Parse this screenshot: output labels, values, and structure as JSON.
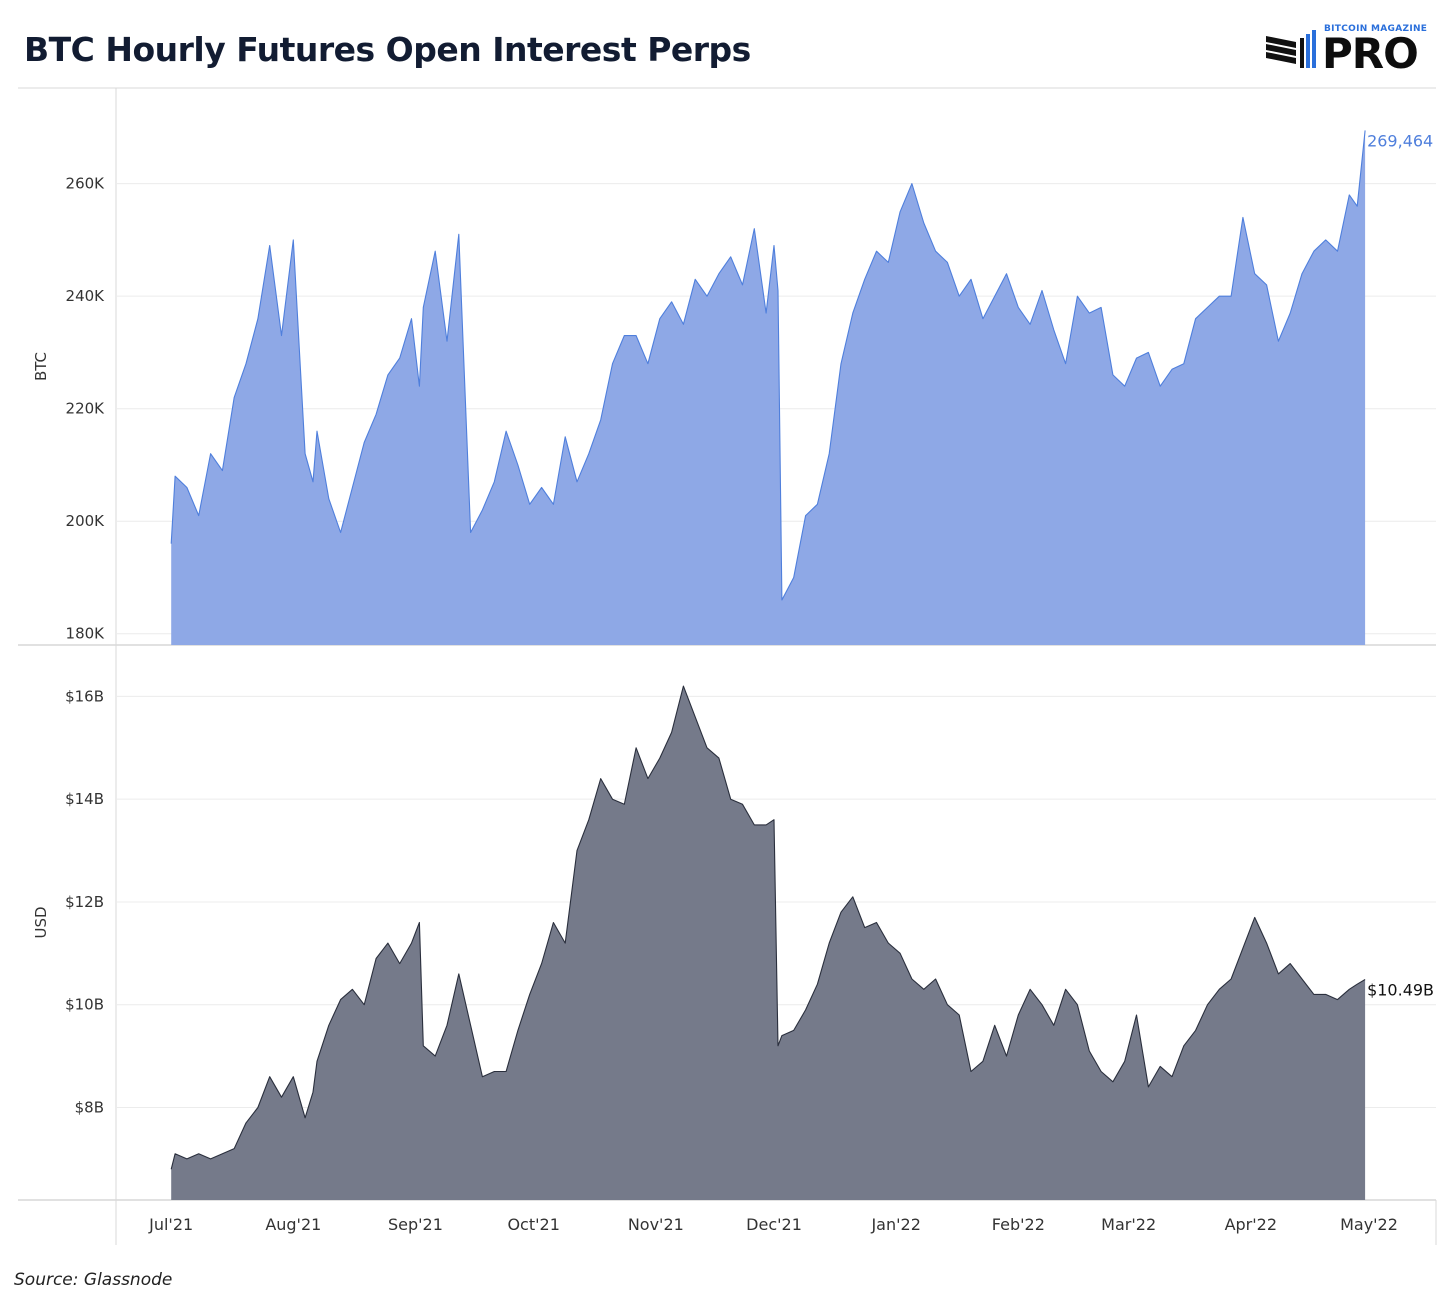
{
  "title": "BTC Hourly Futures Open Interest Perps",
  "logo": {
    "top_text": "BITCOIN MAGAZINE",
    "main_text": "PRO",
    "icon": "bar-stack-icon"
  },
  "source": "Source: Glassnode",
  "colors": {
    "btc_fill": "#8ea8e6",
    "btc_line": "#4f7fdc",
    "usd_fill": "#757a8a",
    "usd_line": "#2a2f3d",
    "last_btc": "#4f7fdc",
    "last_usd": "#111111"
  },
  "chart_data": [
    {
      "type": "area",
      "ylabel": "BTC",
      "ylim": [
        178000,
        277000
      ],
      "yticks": [
        180000,
        200000,
        220000,
        240000,
        260000
      ],
      "ytick_labels": [
        "180K",
        "200K",
        "220K",
        "240K",
        "260K"
      ],
      "x": [
        "2021-07-01",
        "2021-07-02",
        "2021-07-05",
        "2021-07-08",
        "2021-07-11",
        "2021-07-14",
        "2021-07-17",
        "2021-07-20",
        "2021-07-23",
        "2021-07-26",
        "2021-07-29",
        "2021-08-01",
        "2021-08-04",
        "2021-08-06",
        "2021-08-07",
        "2021-08-10",
        "2021-08-13",
        "2021-08-16",
        "2021-08-19",
        "2021-08-22",
        "2021-08-25",
        "2021-08-28",
        "2021-08-31",
        "2021-09-02",
        "2021-09-03",
        "2021-09-06",
        "2021-09-09",
        "2021-09-12",
        "2021-09-15",
        "2021-09-18",
        "2021-09-21",
        "2021-09-24",
        "2021-09-27",
        "2021-09-30",
        "2021-10-03",
        "2021-10-06",
        "2021-10-09",
        "2021-10-12",
        "2021-10-15",
        "2021-10-18",
        "2021-10-21",
        "2021-10-24",
        "2021-10-27",
        "2021-10-30",
        "2021-11-02",
        "2021-11-05",
        "2021-11-08",
        "2021-11-11",
        "2021-11-14",
        "2021-11-17",
        "2021-11-20",
        "2021-11-23",
        "2021-11-26",
        "2021-11-29",
        "2021-12-01",
        "2021-12-02",
        "2021-12-03",
        "2021-12-06",
        "2021-12-09",
        "2021-12-12",
        "2021-12-15",
        "2021-12-18",
        "2021-12-21",
        "2021-12-24",
        "2021-12-27",
        "2021-12-30",
        "2022-01-02",
        "2022-01-05",
        "2022-01-08",
        "2022-01-11",
        "2022-01-14",
        "2022-01-17",
        "2022-01-20",
        "2022-01-23",
        "2022-01-26",
        "2022-01-29",
        "2022-02-01",
        "2022-02-04",
        "2022-02-07",
        "2022-02-10",
        "2022-02-13",
        "2022-02-16",
        "2022-02-19",
        "2022-02-22",
        "2022-02-25",
        "2022-02-28",
        "2022-03-03",
        "2022-03-06",
        "2022-03-09",
        "2022-03-12",
        "2022-03-15",
        "2022-03-18",
        "2022-03-21",
        "2022-03-24",
        "2022-03-27",
        "2022-03-30",
        "2022-04-02",
        "2022-04-05",
        "2022-04-08",
        "2022-04-11",
        "2022-04-14",
        "2022-04-17",
        "2022-04-20",
        "2022-04-23",
        "2022-04-26",
        "2022-04-28",
        "2022-04-30"
      ],
      "values": [
        196000,
        208000,
        206000,
        201000,
        212000,
        209000,
        222000,
        228000,
        236000,
        249000,
        233000,
        250000,
        212000,
        207000,
        216000,
        204000,
        198000,
        206000,
        214000,
        219000,
        226000,
        229000,
        236000,
        224000,
        238000,
        248000,
        232000,
        251000,
        198000,
        202000,
        207000,
        216000,
        210000,
        203000,
        206000,
        203000,
        215000,
        207000,
        212000,
        218000,
        228000,
        233000,
        233000,
        228000,
        236000,
        239000,
        235000,
        243000,
        240000,
        244000,
        247000,
        242000,
        252000,
        237000,
        249000,
        241000,
        186000,
        190000,
        201000,
        203000,
        212000,
        228000,
        237000,
        243000,
        248000,
        246000,
        255000,
        260000,
        253000,
        248000,
        246000,
        240000,
        243000,
        236000,
        240000,
        244000,
        238000,
        235000,
        241000,
        234000,
        228000,
        240000,
        237000,
        238000,
        226000,
        224000,
        229000,
        230000,
        224000,
        227000,
        228000,
        236000,
        238000,
        240000,
        240000,
        254000,
        244000,
        242000,
        232000,
        237000,
        244000,
        248000,
        250000,
        248000,
        258000,
        256000,
        269464
      ],
      "last_label": "269,464"
    },
    {
      "type": "area",
      "ylabel": "USD",
      "ylim": [
        6.2,
        17.0
      ],
      "yticks": [
        8,
        10,
        12,
        14,
        16
      ],
      "ytick_labels": [
        "$8B",
        "$10B",
        "$12B",
        "$14B",
        "$16B"
      ],
      "x": [
        "2021-07-01",
        "2021-07-02",
        "2021-07-05",
        "2021-07-08",
        "2021-07-11",
        "2021-07-14",
        "2021-07-17",
        "2021-07-20",
        "2021-07-23",
        "2021-07-26",
        "2021-07-29",
        "2021-08-01",
        "2021-08-04",
        "2021-08-06",
        "2021-08-07",
        "2021-08-10",
        "2021-08-13",
        "2021-08-16",
        "2021-08-19",
        "2021-08-22",
        "2021-08-25",
        "2021-08-28",
        "2021-08-31",
        "2021-09-02",
        "2021-09-03",
        "2021-09-06",
        "2021-09-09",
        "2021-09-12",
        "2021-09-15",
        "2021-09-18",
        "2021-09-21",
        "2021-09-24",
        "2021-09-27",
        "2021-09-30",
        "2021-10-03",
        "2021-10-06",
        "2021-10-09",
        "2021-10-12",
        "2021-10-15",
        "2021-10-18",
        "2021-10-21",
        "2021-10-24",
        "2021-10-27",
        "2021-10-30",
        "2021-11-02",
        "2021-11-05",
        "2021-11-08",
        "2021-11-11",
        "2021-11-14",
        "2021-11-17",
        "2021-11-20",
        "2021-11-23",
        "2021-11-26",
        "2021-11-29",
        "2021-12-01",
        "2021-12-02",
        "2021-12-03",
        "2021-12-06",
        "2021-12-09",
        "2021-12-12",
        "2021-12-15",
        "2021-12-18",
        "2021-12-21",
        "2021-12-24",
        "2021-12-27",
        "2021-12-30",
        "2022-01-02",
        "2022-01-05",
        "2022-01-08",
        "2022-01-11",
        "2022-01-14",
        "2022-01-17",
        "2022-01-20",
        "2022-01-23",
        "2022-01-26",
        "2022-01-29",
        "2022-02-01",
        "2022-02-04",
        "2022-02-07",
        "2022-02-10",
        "2022-02-13",
        "2022-02-16",
        "2022-02-19",
        "2022-02-22",
        "2022-02-25",
        "2022-02-28",
        "2022-03-03",
        "2022-03-06",
        "2022-03-09",
        "2022-03-12",
        "2022-03-15",
        "2022-03-18",
        "2022-03-21",
        "2022-03-24",
        "2022-03-27",
        "2022-03-30",
        "2022-04-02",
        "2022-04-05",
        "2022-04-08",
        "2022-04-11",
        "2022-04-14",
        "2022-04-17",
        "2022-04-20",
        "2022-04-23",
        "2022-04-26",
        "2022-04-28",
        "2022-04-30"
      ],
      "values": [
        6.8,
        7.1,
        7.0,
        7.1,
        7.0,
        7.1,
        7.2,
        7.7,
        8.0,
        8.6,
        8.2,
        8.6,
        7.8,
        8.3,
        8.9,
        9.6,
        10.1,
        10.3,
        10.0,
        10.9,
        11.2,
        10.8,
        11.2,
        11.6,
        9.2,
        9.0,
        9.6,
        10.6,
        9.6,
        8.6,
        8.7,
        8.7,
        9.5,
        10.2,
        10.8,
        11.6,
        11.2,
        13.0,
        13.6,
        14.4,
        14.0,
        13.9,
        15.0,
        14.4,
        14.8,
        15.3,
        16.2,
        15.6,
        15.0,
        14.8,
        14.0,
        13.9,
        13.5,
        13.5,
        13.6,
        9.2,
        9.4,
        9.5,
        9.9,
        10.4,
        11.2,
        11.8,
        12.1,
        11.5,
        11.6,
        11.2,
        11.0,
        10.5,
        10.3,
        10.5,
        10.0,
        9.8,
        8.7,
        8.9,
        9.6,
        9.0,
        9.8,
        10.3,
        10.0,
        9.6,
        10.3,
        10.0,
        9.1,
        8.7,
        8.5,
        8.9,
        9.8,
        8.4,
        8.8,
        8.6,
        9.2,
        9.5,
        10.0,
        10.3,
        10.5,
        11.1,
        11.7,
        11.2,
        10.6,
        10.8,
        10.5,
        10.2,
        10.2,
        10.1,
        10.3,
        10.4,
        10.49
      ],
      "last_label": "$10.49B"
    }
  ],
  "x_axis": {
    "range": [
      "2021-06-17",
      "2022-05-18"
    ],
    "ticks": [
      {
        "date": "2021-07-01",
        "label": "Jul'21"
      },
      {
        "date": "2021-08-01",
        "label": "Aug'21"
      },
      {
        "date": "2021-09-01",
        "label": "Sep'21"
      },
      {
        "date": "2021-10-01",
        "label": "Oct'21"
      },
      {
        "date": "2021-11-01",
        "label": "Nov'21"
      },
      {
        "date": "2021-12-01",
        "label": "Dec'21"
      },
      {
        "date": "2022-01-01",
        "label": "Jan'22"
      },
      {
        "date": "2022-02-01",
        "label": "Feb'22"
      },
      {
        "date": "2022-03-01",
        "label": "Mar'22"
      },
      {
        "date": "2022-04-01",
        "label": "Apr'22"
      },
      {
        "date": "2022-05-01",
        "label": "May'22"
      }
    ]
  }
}
